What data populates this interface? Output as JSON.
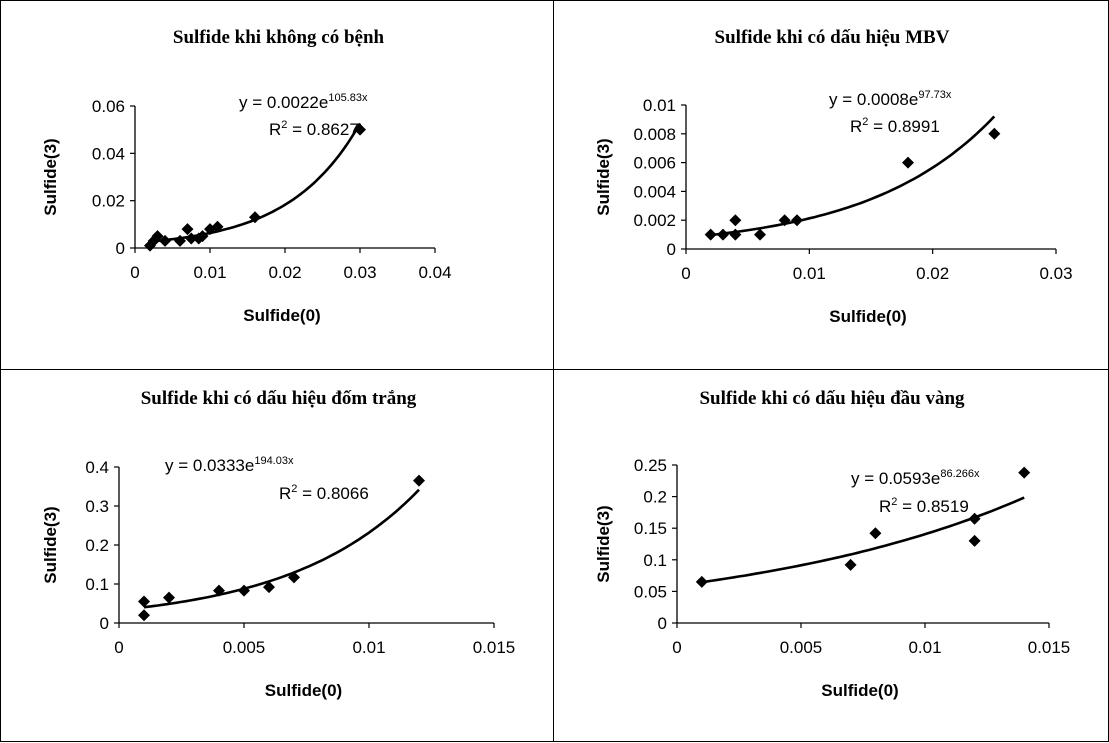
{
  "chart_data": [
    {
      "type": "scatter",
      "title": "Sulfide khi không có bệnh",
      "xlabel": "Sulfide(0)",
      "ylabel": "Sulfide(3)",
      "xlim": [
        0,
        0.04
      ],
      "ylim": [
        0,
        0.06
      ],
      "xticks": [
        "0",
        "0.01",
        "0.02",
        "0.03",
        "0.04"
      ],
      "yticks": [
        "0",
        "0.02",
        "0.04",
        "0.06"
      ],
      "points": [
        [
          0.002,
          0.001
        ],
        [
          0.0025,
          0.003
        ],
        [
          0.003,
          0.005
        ],
        [
          0.004,
          0.003
        ],
        [
          0.006,
          0.003
        ],
        [
          0.007,
          0.008
        ],
        [
          0.0075,
          0.004
        ],
        [
          0.0085,
          0.004
        ],
        [
          0.009,
          0.005
        ],
        [
          0.01,
          0.008
        ],
        [
          0.011,
          0.009
        ],
        [
          0.016,
          0.013
        ],
        [
          0.03,
          0.05
        ]
      ],
      "trendline": {
        "type": "exponential",
        "a": 0.0022,
        "b": 105.83
      },
      "equation": {
        "prefix": "y = 0.0022e",
        "exponent": "105.83x",
        "r2_label": "R",
        "r2_value": " = 0.8627"
      },
      "grid": false,
      "legend": "none"
    },
    {
      "type": "scatter",
      "title": "Sulfide khi có dấu hiệu MBV",
      "xlabel": "Sulfide(0)",
      "ylabel": "Sulfide(3)",
      "xlim": [
        0,
        0.03
      ],
      "ylim": [
        0,
        0.01
      ],
      "xticks": [
        "0",
        "0.01",
        "0.02",
        "0.03"
      ],
      "yticks": [
        "0",
        "0.002",
        "0.004",
        "0.006",
        "0.008",
        "0.01"
      ],
      "points": [
        [
          0.002,
          0.001
        ],
        [
          0.003,
          0.001
        ],
        [
          0.004,
          0.001
        ],
        [
          0.004,
          0.002
        ],
        [
          0.006,
          0.001
        ],
        [
          0.008,
          0.002
        ],
        [
          0.009,
          0.002
        ],
        [
          0.018,
          0.006
        ],
        [
          0.025,
          0.008
        ]
      ],
      "trendline": {
        "type": "exponential",
        "a": 0.0008,
        "b": 97.73
      },
      "equation": {
        "prefix": "y = 0.0008e",
        "exponent": "97.73x",
        "r2_label": "R",
        "r2_value": " = 0.8991"
      },
      "grid": false,
      "legend": "none"
    },
    {
      "type": "scatter",
      "title": "Sulfide khi có dấu hiệu đốm trắng",
      "xlabel": "Sulfide(0)",
      "ylabel": "Sulfide(3)",
      "xlim": [
        0,
        0.015
      ],
      "ylim": [
        0,
        0.4
      ],
      "xticks": [
        "0",
        "0.005",
        "0.01",
        "0.015"
      ],
      "yticks": [
        "0",
        "0.1",
        "0.2",
        "0.3",
        "0.4"
      ],
      "points": [
        [
          0.001,
          0.02
        ],
        [
          0.001,
          0.055
        ],
        [
          0.002,
          0.065
        ],
        [
          0.004,
          0.083
        ],
        [
          0.005,
          0.083
        ],
        [
          0.006,
          0.092
        ],
        [
          0.007,
          0.117
        ],
        [
          0.012,
          0.365
        ]
      ],
      "trendline": {
        "type": "exponential",
        "a": 0.0333,
        "b": 194.03
      },
      "equation": {
        "prefix": "y = 0.0333e",
        "exponent": "194.03x",
        "r2_label": "R",
        "r2_value": " = 0.8066"
      },
      "grid": false,
      "legend": "none"
    },
    {
      "type": "scatter",
      "title": "Sulfide khi có dấu hiệu đầu vàng",
      "xlabel": "Sulfide(0)",
      "ylabel": "Sulfide(3)",
      "xlim": [
        0,
        0.015
      ],
      "ylim": [
        0,
        0.25
      ],
      "xticks": [
        "0",
        "0.005",
        "0.01",
        "0.015"
      ],
      "yticks": [
        "0",
        "0.05",
        "0.1",
        "0.15",
        "0.2",
        "0.25"
      ],
      "points": [
        [
          0.001,
          0.065
        ],
        [
          0.007,
          0.092
        ],
        [
          0.008,
          0.142
        ],
        [
          0.012,
          0.13
        ],
        [
          0.012,
          0.165
        ],
        [
          0.014,
          0.238
        ]
      ],
      "trendline": {
        "type": "exponential",
        "a": 0.0593,
        "b": 86.266
      },
      "equation": {
        "prefix": "y = 0.0593e",
        "exponent": "86.266x",
        "r2_label": "R",
        "r2_value": " = 0.8519"
      },
      "grid": false,
      "legend": "none"
    }
  ]
}
